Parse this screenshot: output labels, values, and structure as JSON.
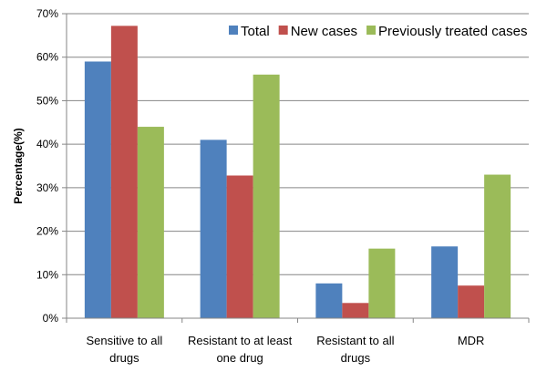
{
  "chart_data": {
    "type": "bar",
    "title": "",
    "xlabel": "",
    "ylabel": "Percentage(%)",
    "ylim": [
      0,
      70
    ],
    "ytick_step": 10,
    "ytick_labels": [
      "0%",
      "10%",
      "20%",
      "30%",
      "40%",
      "50%",
      "60%",
      "70%"
    ],
    "categories": [
      [
        "Sensitive to all",
        "drugs"
      ],
      [
        "Resistant to at least",
        "one drug"
      ],
      [
        "Resistant to all",
        "drugs"
      ],
      [
        "MDR"
      ]
    ],
    "series": [
      {
        "name": "Total",
        "color": "#4F81BD",
        "values": [
          59,
          41,
          8,
          16.5
        ]
      },
      {
        "name": "New cases",
        "color": "#C0504D",
        "values": [
          67.2,
          32.8,
          3.5,
          7.5
        ]
      },
      {
        "name": "Previously treated cases",
        "color": "#9BBB59",
        "values": [
          44,
          56,
          16,
          33
        ]
      }
    ],
    "grid": true,
    "legend_position": "top-right"
  }
}
